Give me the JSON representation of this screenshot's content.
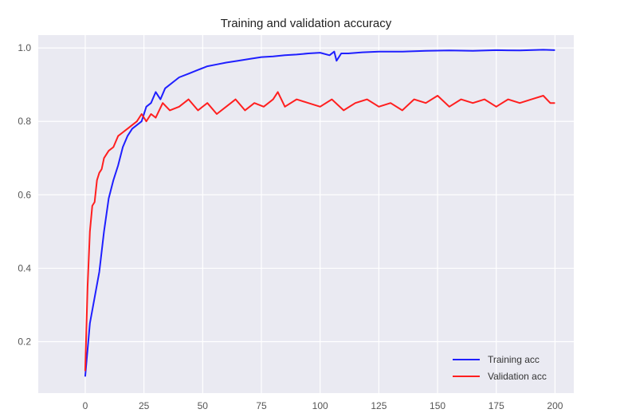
{
  "chart_data": {
    "type": "line",
    "title": "Training and validation accuracy",
    "xlabel": "",
    "ylabel": "",
    "xlim": [
      -20,
      208
    ],
    "ylim": [
      0.06,
      1.035
    ],
    "xticks": [
      0,
      25,
      50,
      75,
      100,
      125,
      150,
      175,
      200
    ],
    "yticks": [
      0.2,
      0.4,
      0.6,
      0.8,
      1.0
    ],
    "xtick_labels": [
      "0",
      "25",
      "50",
      "75",
      "100",
      "125",
      "150",
      "175",
      "200"
    ],
    "ytick_labels": [
      "0.2",
      "0.4",
      "0.6",
      "0.8",
      "1.0"
    ],
    "grid": true,
    "legend_position": "bottom-right",
    "series": [
      {
        "name": "Training acc",
        "color": "#1f1fff",
        "x": [
          0,
          2,
          4,
          6,
          8,
          10,
          12,
          14,
          16,
          18,
          20,
          22,
          24,
          26,
          28,
          30,
          32,
          34,
          36,
          38,
          40,
          44,
          48,
          52,
          56,
          60,
          65,
          70,
          75,
          80,
          85,
          90,
          95,
          100,
          104,
          106,
          107,
          109,
          112,
          118,
          125,
          135,
          145,
          155,
          165,
          175,
          185,
          195,
          200
        ],
        "y": [
          0.105,
          0.25,
          0.32,
          0.39,
          0.5,
          0.59,
          0.64,
          0.68,
          0.73,
          0.76,
          0.78,
          0.79,
          0.8,
          0.84,
          0.85,
          0.88,
          0.86,
          0.89,
          0.9,
          0.91,
          0.92,
          0.93,
          0.94,
          0.95,
          0.955,
          0.96,
          0.965,
          0.97,
          0.975,
          0.977,
          0.98,
          0.982,
          0.985,
          0.987,
          0.98,
          0.99,
          0.965,
          0.985,
          0.985,
          0.988,
          0.99,
          0.99,
          0.992,
          0.993,
          0.992,
          0.994,
          0.993,
          0.995,
          0.994
        ]
      },
      {
        "name": "Validation acc",
        "color": "#ff1f1f",
        "x": [
          0,
          1,
          2,
          3,
          4,
          5,
          6,
          7,
          8,
          10,
          12,
          14,
          16,
          18,
          20,
          22,
          24,
          26,
          28,
          30,
          33,
          36,
          40,
          44,
          48,
          52,
          56,
          60,
          64,
          68,
          72,
          76,
          80,
          82,
          85,
          90,
          95,
          100,
          105,
          110,
          115,
          120,
          125,
          130,
          135,
          140,
          145,
          150,
          155,
          160,
          165,
          170,
          175,
          180,
          185,
          190,
          195,
          198,
          200
        ],
        "y": [
          0.12,
          0.35,
          0.5,
          0.57,
          0.58,
          0.64,
          0.66,
          0.67,
          0.7,
          0.72,
          0.73,
          0.76,
          0.77,
          0.78,
          0.79,
          0.8,
          0.82,
          0.8,
          0.82,
          0.81,
          0.85,
          0.83,
          0.84,
          0.86,
          0.83,
          0.85,
          0.82,
          0.84,
          0.86,
          0.83,
          0.85,
          0.84,
          0.86,
          0.88,
          0.84,
          0.86,
          0.85,
          0.84,
          0.86,
          0.83,
          0.85,
          0.86,
          0.84,
          0.85,
          0.83,
          0.86,
          0.85,
          0.87,
          0.84,
          0.86,
          0.85,
          0.86,
          0.84,
          0.86,
          0.85,
          0.86,
          0.87,
          0.85,
          0.85
        ]
      }
    ]
  }
}
